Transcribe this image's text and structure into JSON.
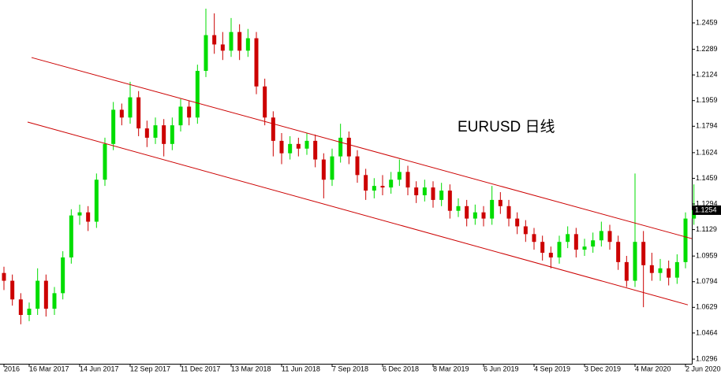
{
  "chart_data": {
    "type": "candlestick",
    "title": "EURUSD 日线",
    "categories": [
      "2016",
      null,
      null,
      "16 Mar 2017",
      null,
      null,
      null,
      null,
      null,
      "14 Jun 2017",
      null,
      null,
      null,
      null,
      null,
      "12 Sep 2017",
      null,
      null,
      null,
      null,
      null,
      "11 Dec 2017",
      null,
      null,
      null,
      null,
      null,
      "13 Mar 2018",
      null,
      null,
      null,
      null,
      null,
      "11 Jun 2018",
      null,
      null,
      null,
      null,
      null,
      "7 Sep 2018",
      null,
      null,
      null,
      null,
      null,
      "6 Dec 2018",
      null,
      null,
      null,
      null,
      null,
      "8 Mar 2019",
      null,
      null,
      null,
      null,
      null,
      "6 Jun 2019",
      null,
      null,
      null,
      null,
      null,
      "4 Sep 2019",
      null,
      null,
      null,
      null,
      null,
      "3 Dec 2019",
      null,
      null,
      null,
      null,
      null,
      "4 Mar 2020",
      null,
      null,
      null,
      null,
      null,
      "2 Jun 2020",
      null
    ],
    "open": [
      1.085,
      1.08,
      1.068,
      1.058,
      1.062,
      1.08,
      1.062,
      1.072,
      1.095,
      1.122,
      1.124,
      1.118,
      1.145,
      1.168,
      1.19,
      1.185,
      1.198,
      1.178,
      1.172,
      1.18,
      1.168,
      1.18,
      1.192,
      1.185,
      1.215,
      1.238,
      1.232,
      1.228,
      1.24,
      1.228,
      1.236,
      1.205,
      1.185,
      1.17,
      1.162,
      1.168,
      1.165,
      1.17,
      1.158,
      1.145,
      1.16,
      1.172,
      1.16,
      1.148,
      1.138,
      1.141,
      1.14,
      1.145,
      1.15,
      1.14,
      1.135,
      1.14,
      1.132,
      1.138,
      1.125,
      1.128,
      1.12,
      1.124,
      1.12,
      1.132,
      1.128,
      1.12,
      1.115,
      1.11,
      1.105,
      1.098,
      1.095,
      1.105,
      1.11,
      1.1,
      1.102,
      1.106,
      1.112,
      1.105,
      1.092,
      1.08,
      1.105,
      1.09,
      1.085,
      1.088,
      1.082,
      1.092,
      1.12
    ],
    "high": [
      1.089,
      1.084,
      1.072,
      1.066,
      1.088,
      1.084,
      1.076,
      1.099,
      1.126,
      1.129,
      1.128,
      1.149,
      1.172,
      1.195,
      1.194,
      1.208,
      1.202,
      1.183,
      1.185,
      1.184,
      1.185,
      1.197,
      1.196,
      1.219,
      1.255,
      1.252,
      1.24,
      1.249,
      1.245,
      1.242,
      1.24,
      1.21,
      1.189,
      1.175,
      1.173,
      1.172,
      1.175,
      1.174,
      1.162,
      1.165,
      1.181,
      1.176,
      1.164,
      1.152,
      1.146,
      1.148,
      1.15,
      1.158,
      1.154,
      1.144,
      1.145,
      1.144,
      1.143,
      1.142,
      1.133,
      1.132,
      1.129,
      1.128,
      1.141,
      1.137,
      1.132,
      1.124,
      1.119,
      1.114,
      1.109,
      1.102,
      1.109,
      1.115,
      1.114,
      1.107,
      1.111,
      1.118,
      1.116,
      1.109,
      1.096,
      1.149,
      1.112,
      1.098,
      1.094,
      1.093,
      1.097,
      1.124,
      1.142
    ],
    "low": [
      1.074,
      1.064,
      1.052,
      1.054,
      1.058,
      1.057,
      1.058,
      1.068,
      1.091,
      1.116,
      1.112,
      1.114,
      1.141,
      1.164,
      1.18,
      1.181,
      1.173,
      1.166,
      1.168,
      1.16,
      1.164,
      1.176,
      1.18,
      1.181,
      1.211,
      1.226,
      1.222,
      1.224,
      1.222,
      1.224,
      1.2,
      1.18,
      1.16,
      1.155,
      1.158,
      1.16,
      1.161,
      1.153,
      1.133,
      1.141,
      1.156,
      1.155,
      1.143,
      1.132,
      1.133,
      1.135,
      1.136,
      1.141,
      1.135,
      1.13,
      1.131,
      1.127,
      1.128,
      1.12,
      1.121,
      1.115,
      1.116,
      1.115,
      1.116,
      1.123,
      1.115,
      1.11,
      1.105,
      1.1,
      1.093,
      1.088,
      1.091,
      1.101,
      1.095,
      1.096,
      1.098,
      1.102,
      1.1,
      1.087,
      1.076,
      1.076,
      1.063,
      1.08,
      1.08,
      1.077,
      1.078,
      1.088,
      1.116
    ],
    "close": [
      1.08,
      1.068,
      1.058,
      1.062,
      1.08,
      1.062,
      1.072,
      1.095,
      1.122,
      1.124,
      1.118,
      1.145,
      1.168,
      1.19,
      1.185,
      1.198,
      1.178,
      1.172,
      1.18,
      1.168,
      1.18,
      1.192,
      1.185,
      1.215,
      1.238,
      1.232,
      1.228,
      1.24,
      1.228,
      1.236,
      1.205,
      1.185,
      1.17,
      1.162,
      1.168,
      1.165,
      1.17,
      1.158,
      1.145,
      1.16,
      1.172,
      1.16,
      1.148,
      1.138,
      1.141,
      1.14,
      1.145,
      1.15,
      1.14,
      1.135,
      1.14,
      1.132,
      1.138,
      1.125,
      1.128,
      1.12,
      1.124,
      1.12,
      1.132,
      1.128,
      1.12,
      1.115,
      1.11,
      1.105,
      1.098,
      1.095,
      1.105,
      1.11,
      1.1,
      1.102,
      1.106,
      1.112,
      1.105,
      1.092,
      1.08,
      1.105,
      1.09,
      1.085,
      1.088,
      1.082,
      1.092,
      1.12,
      1.1254
    ],
    "up_color": "#00dd00",
    "down_color": "#cc0000",
    "ylim": [
      1.0266,
      1.2606
    ],
    "yticks": [
      1.0296,
      1.0464,
      1.0629,
      1.0794,
      1.0959,
      1.1129,
      1.1294,
      1.1459,
      1.1624,
      1.1794,
      1.1959,
      1.2124,
      1.2289,
      1.2459
    ],
    "last_price": 1.1254,
    "trendlines": [
      {
        "x": [
          3.28,
          81.75
        ],
        "y": [
          1.2236,
          1.1071
        ],
        "color": "#cc0000"
      },
      {
        "x": [
          2.81,
          81.28
        ],
        "y": [
          1.1821,
          1.0645
        ],
        "color": "#cc0000"
      }
    ]
  }
}
